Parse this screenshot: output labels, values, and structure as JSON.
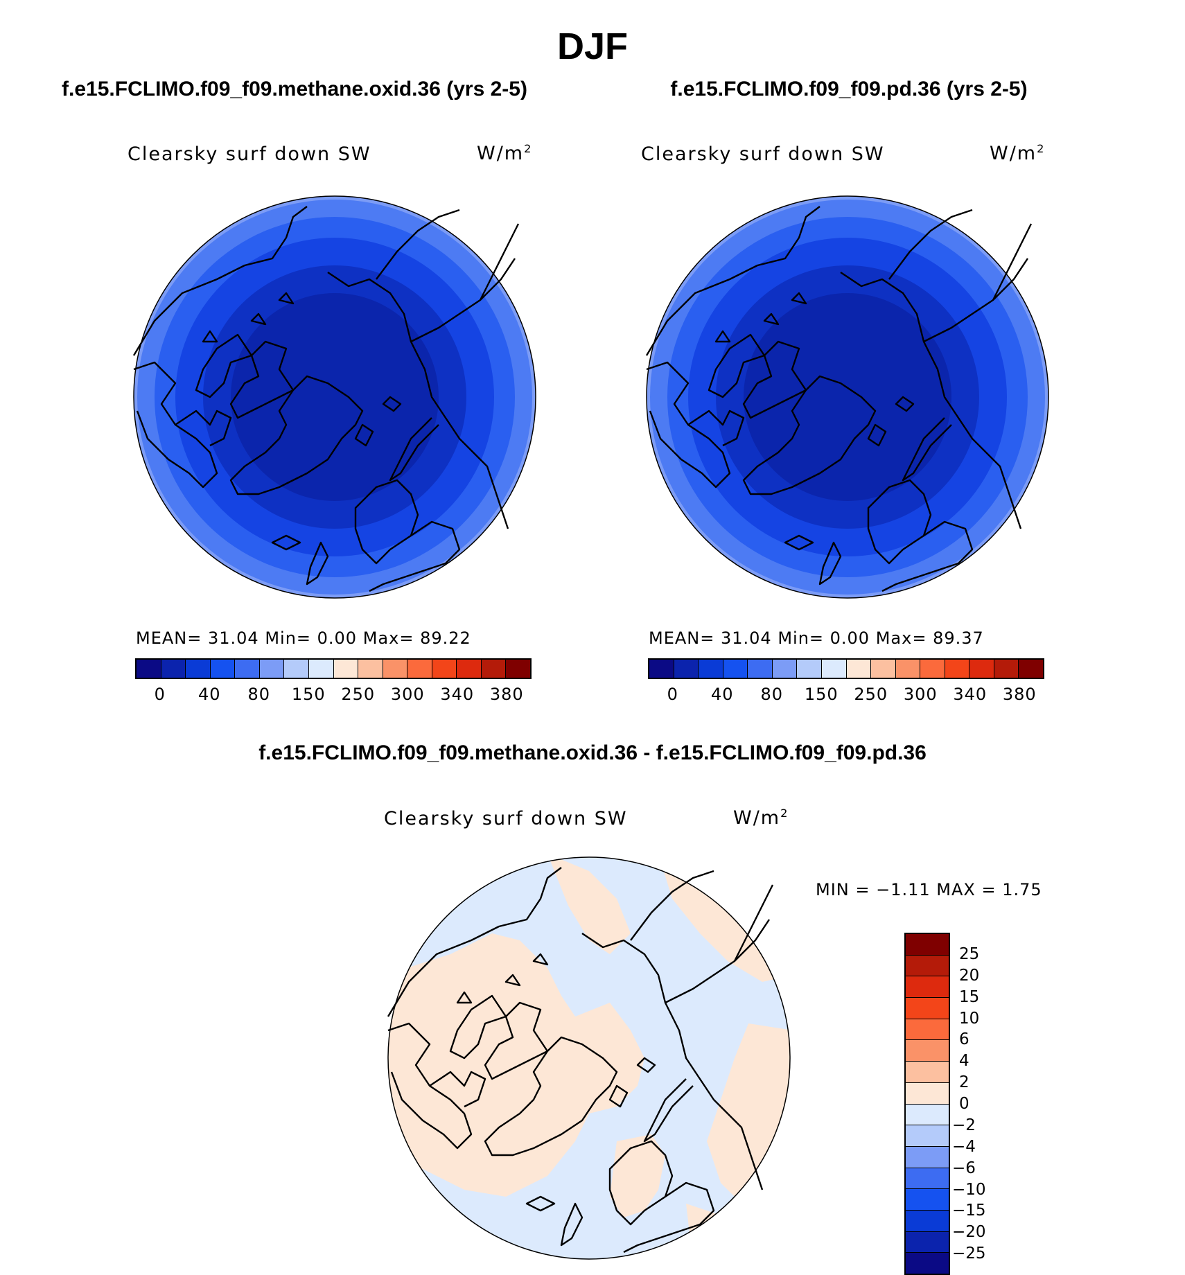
{
  "season": "DJF",
  "panels": {
    "left": {
      "case_title": "f.e15.FCLIMO.f09_f09.methane.oxid.36 (yrs 2-5)",
      "variable": "Clearsky surf down SW",
      "units_base": "W/m",
      "units_exp": "2",
      "stats": "MEAN=   31.04   Min=    0.00   Max=   89.22"
    },
    "right": {
      "case_title": "f.e15.FCLIMO.f09_f09.pd.36 (yrs 2-5)",
      "variable": "Clearsky surf down SW",
      "units_base": "W/m",
      "units_exp": "2",
      "stats": "MEAN=   31.04   Min=    0.00   Max=   89.37"
    },
    "diff": {
      "case_title": "f.e15.FCLIMO.f09_f09.methane.oxid.36 - f.e15.FCLIMO.f09_f09.pd.36",
      "variable": "Clearsky surf down SW",
      "units_base": "W/m",
      "units_exp": "2",
      "stats": "MIN =   −1.11  MAX =     1.75"
    }
  },
  "colorbar_abs": {
    "colors": [
      "#0b0a85",
      "#0b23ad",
      "#0a3bd6",
      "#1552f0",
      "#3d6cf2",
      "#7c9cf6",
      "#b4cbfa",
      "#dceafd",
      "#fde7d6",
      "#fcc0a0",
      "#fa9268",
      "#fb6a3c",
      "#f34519",
      "#dd2a0e",
      "#b41b09",
      "#7f0000"
    ],
    "tick_labels": [
      "0",
      "40",
      "80",
      "150",
      "250",
      "300",
      "340",
      "380"
    ]
  },
  "colorbar_diff": {
    "colors": [
      "#7f0000",
      "#b41b09",
      "#dd2a0e",
      "#f34519",
      "#fb6a3c",
      "#fa9268",
      "#fcc0a0",
      "#fde7d6",
      "#dceafd",
      "#b4cbfa",
      "#7c9cf6",
      "#3d6cf2",
      "#1552f0",
      "#0a3bd6",
      "#0b23ad",
      "#0b0a85"
    ],
    "tick_labels": [
      "25",
      "20",
      "15",
      "10",
      "6",
      "4",
      "2",
      "0",
      "−2",
      "−4",
      "−6",
      "−10",
      "−15",
      "−20",
      "−25"
    ]
  },
  "map_colors": {
    "ring_outer": "#4d7bf3",
    "ring_2": "#2a5ff0",
    "ring_3": "#1544e3",
    "ring_4": "#0e31c3",
    "ring_core": "#0b25ac",
    "rim": "#7c9cf6",
    "diff_neg": "#dceafd",
    "diff_pos": "#fde7d6"
  }
}
